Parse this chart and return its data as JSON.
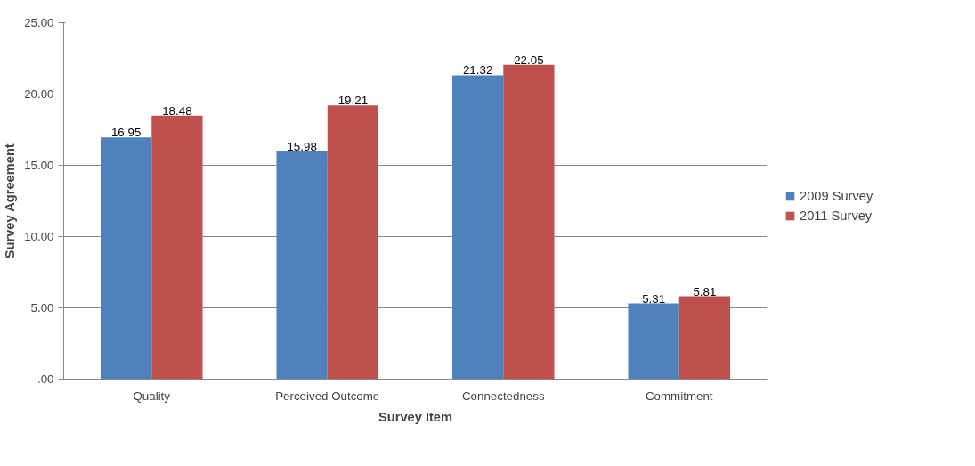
{
  "chart_data": {
    "type": "bar",
    "xlabel": "Survey Item",
    "ylabel": "Survey Agreement",
    "categories": [
      "Quality",
      "Perceived Outcome",
      "Connectedness",
      "Commitment"
    ],
    "series": [
      {
        "name": "2009 Survey",
        "color": "#4f81bd",
        "values": [
          16.95,
          15.98,
          21.32,
          5.31
        ]
      },
      {
        "name": "2011 Survey",
        "color": "#c0504d",
        "values": [
          18.48,
          19.21,
          22.05,
          5.81
        ]
      }
    ],
    "ylim": [
      0,
      25
    ],
    "yticks": [
      {
        "value": 0,
        "label": ".00"
      },
      {
        "value": 5,
        "label": "5.00"
      },
      {
        "value": 10,
        "label": "10.00"
      },
      {
        "value": 15,
        "label": "15.00"
      },
      {
        "value": 20,
        "label": "20.00"
      },
      {
        "value": 25,
        "label": "25.00"
      }
    ],
    "grid": "y",
    "legend": "right",
    "data_labels": true
  }
}
